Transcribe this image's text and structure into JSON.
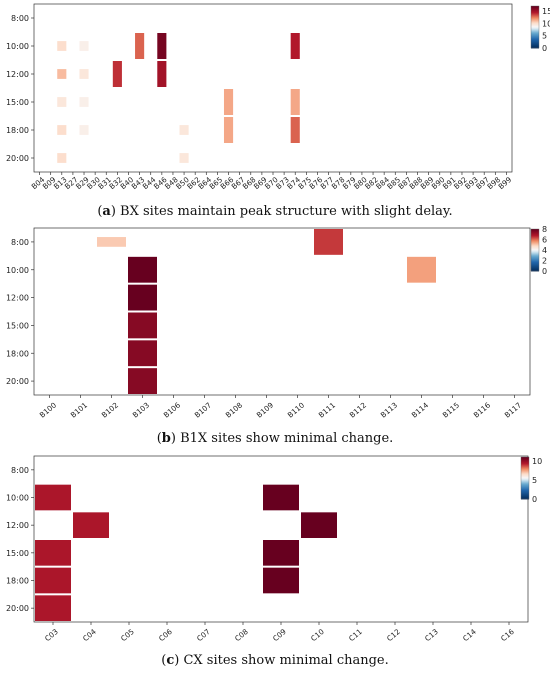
{
  "chart_data": [
    {
      "type": "heatmap",
      "caption_label": "a",
      "caption_text": "BX sites maintain peak structure with slight delay.",
      "y_ticks": [
        "8:00",
        "10:00",
        "12:00",
        "15:00",
        "18:00",
        "20:00"
      ],
      "x_ticks": [
        "B04",
        "B09",
        "B13",
        "B27",
        "B29",
        "B30",
        "B31",
        "B32",
        "B40",
        "B43",
        "B44",
        "B46",
        "B48",
        "B50",
        "B62",
        "B64",
        "B65",
        "B66",
        "B67",
        "B68",
        "B69",
        "B70",
        "B73",
        "B74",
        "B75",
        "B76",
        "B77",
        "B78",
        "B79",
        "B80",
        "B82",
        "B84",
        "B85",
        "B87",
        "B88",
        "B89",
        "B90",
        "B91",
        "B92",
        "B93",
        "B97",
        "B98",
        "B99"
      ],
      "colorbar": {
        "min": 0,
        "max": 17,
        "ticks": [
          0,
          5,
          10,
          15
        ]
      },
      "cells": [
        {
          "x": "B13",
          "y": "10:00",
          "value": 3
        },
        {
          "x": "B13",
          "y": "12:00",
          "value": 5
        },
        {
          "x": "B13",
          "y": "15:00",
          "value": 2
        },
        {
          "x": "B13",
          "y": "18:00",
          "value": 3
        },
        {
          "x": "B13",
          "y": "20:00",
          "value": 3
        },
        {
          "x": "B29",
          "y": "10:00",
          "value": 1
        },
        {
          "x": "B29",
          "y": "12:00",
          "value": 2
        },
        {
          "x": "B29",
          "y": "15:00",
          "value": 1
        },
        {
          "x": "B29",
          "y": "18:00",
          "value": 1
        },
        {
          "x": "B32",
          "y": "12:00",
          "value": 11
        },
        {
          "x": "B43",
          "y": "10:00",
          "value": 9
        },
        {
          "x": "B46",
          "y": "10:00",
          "value": 16
        },
        {
          "x": "B46",
          "y": "12:00",
          "value": 13
        },
        {
          "x": "B50",
          "y": "18:00",
          "value": 2
        },
        {
          "x": "B50",
          "y": "20:00",
          "value": 2
        },
        {
          "x": "B66",
          "y": "15:00",
          "value": 6
        },
        {
          "x": "B66",
          "y": "18:00",
          "value": 6
        },
        {
          "x": "B74",
          "y": "10:00",
          "value": 12
        },
        {
          "x": "B74",
          "y": "18:00",
          "value": 9
        },
        {
          "x": "B74",
          "y": "15:00",
          "value": 6
        }
      ]
    },
    {
      "type": "heatmap",
      "caption_label": "b",
      "caption_text": "B1X sites show minimal change.",
      "y_ticks": [
        "8:00",
        "10:00",
        "12:00",
        "15:00",
        "18:00",
        "20:00"
      ],
      "x_ticks": [
        "B100",
        "B101",
        "B102",
        "B103",
        "B106",
        "B107",
        "B108",
        "B109",
        "B110",
        "B111",
        "B112",
        "B113",
        "B114",
        "B115",
        "B116",
        "B117"
      ],
      "colorbar": {
        "min": 0,
        "max": 8,
        "ticks": [
          0,
          2,
          4,
          6,
          8
        ]
      },
      "cells": [
        {
          "x": "B103",
          "y": "10:00",
          "value": 8
        },
        {
          "x": "B103",
          "y": "12:00",
          "value": 8
        },
        {
          "x": "B103",
          "y": "15:00",
          "value": 7
        },
        {
          "x": "B103",
          "y": "18:00",
          "value": 7
        },
        {
          "x": "B103",
          "y": "20:00",
          "value": 7
        },
        {
          "x": "B111",
          "y": "8:00",
          "value": 5
        },
        {
          "x": "B102",
          "y": "8:00",
          "value": 2
        },
        {
          "x": "B114",
          "y": "10:00",
          "value": 3
        }
      ]
    },
    {
      "type": "heatmap",
      "caption_label": "c",
      "caption_text": "CX sites show minimal change.",
      "y_ticks": [
        "8:00",
        "10:00",
        "12:00",
        "15:00",
        "18:00",
        "20:00"
      ],
      "x_ticks": [
        "C03",
        "C04",
        "C05",
        "C06",
        "C07",
        "C08",
        "C09",
        "C10",
        "C11",
        "C12",
        "C13",
        "C14",
        "C16"
      ],
      "colorbar": {
        "min": 0,
        "max": 11,
        "ticks": [
          0,
          5,
          10
        ]
      },
      "cells": [
        {
          "x": "C09",
          "y": "10:00",
          "value": 11
        },
        {
          "x": "C10",
          "y": "12:00",
          "value": 11
        },
        {
          "x": "C09",
          "y": "15:00",
          "value": 11
        },
        {
          "x": "C09",
          "y": "18:00",
          "value": 11
        },
        {
          "x": "C03",
          "y": "10:00",
          "value": 8
        },
        {
          "x": "C03",
          "y": "15:00",
          "value": 8
        },
        {
          "x": "C03",
          "y": "18:00",
          "value": 8
        },
        {
          "x": "C03",
          "y": "20:00",
          "value": 8
        },
        {
          "x": "C04",
          "y": "12:00",
          "value": 8
        }
      ]
    }
  ]
}
